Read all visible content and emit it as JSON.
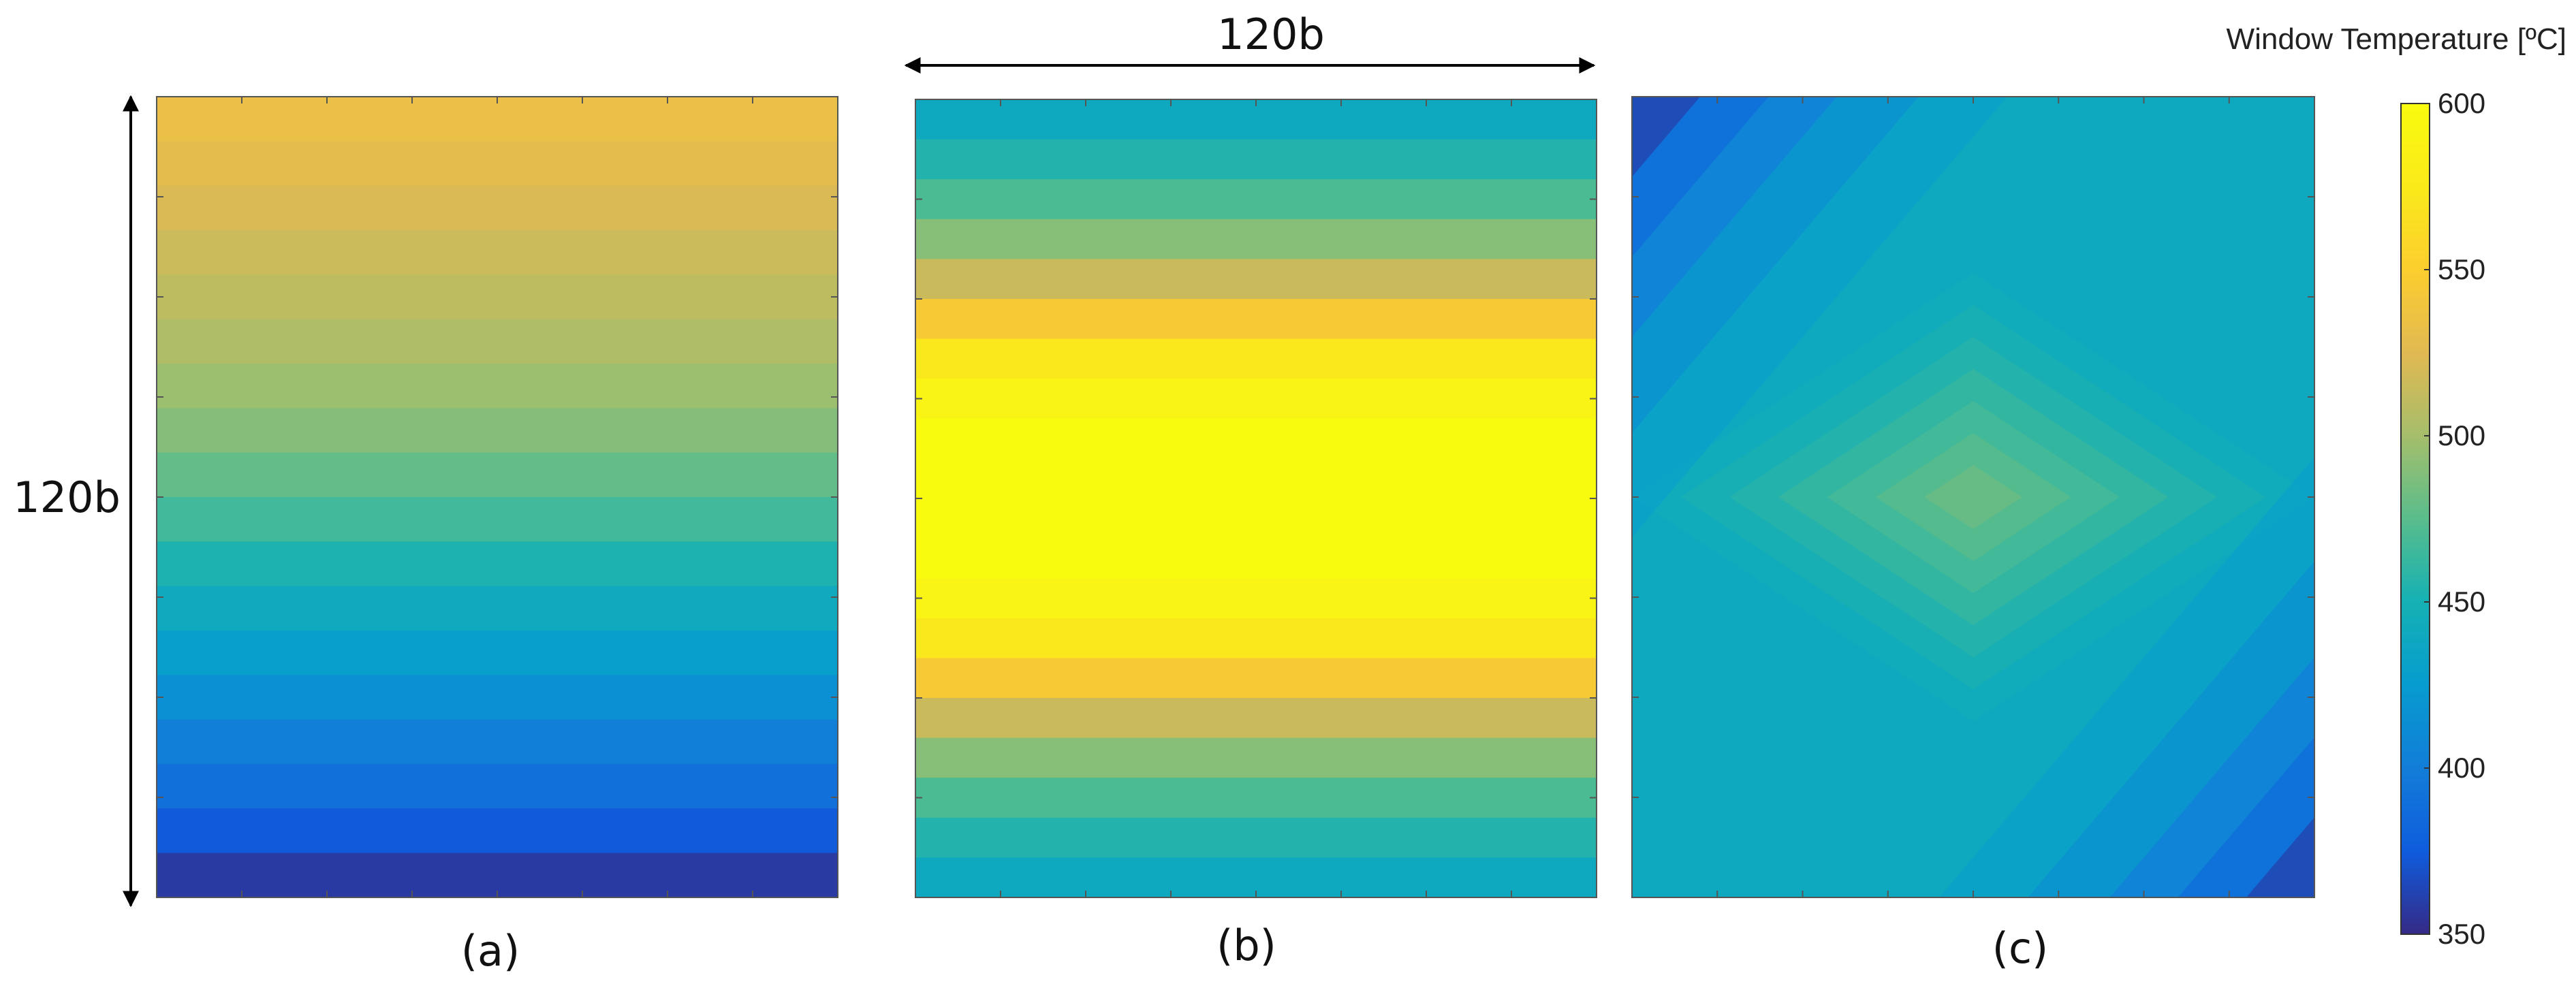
{
  "chart_data": {
    "type": "heatmap",
    "colormap": "parula",
    "colorbar": {
      "title": "Window Temperature [ºC]",
      "min": 350,
      "max": 600,
      "ticks": [
        "350",
        "400",
        "450",
        "500",
        "550",
        "600"
      ]
    },
    "dimension_labels": {
      "width": "120b",
      "height": "120b"
    },
    "panels": [
      {
        "label": "(a)",
        "pattern": "vertical-gradient",
        "levels_top_to_bottom": [
          533,
          528,
          522,
          516,
          510,
          504,
          497,
          489,
          478,
          466,
          453,
          441,
          428,
          415,
          402,
          390,
          374,
          358
        ]
      },
      {
        "label": "(b)",
        "pattern": "vertical-gradient",
        "levels_top_to_bottom": [
          440,
          455,
          470,
          490,
          515,
          545,
          572,
          590,
          600,
          600,
          600,
          600,
          590,
          572,
          545,
          515,
          490,
          470,
          455,
          440
        ]
      },
      {
        "label": "(c)",
        "pattern": "diamond-peak",
        "peak_value": 485,
        "base_value": 440,
        "corner_min_value": 360
      }
    ]
  }
}
